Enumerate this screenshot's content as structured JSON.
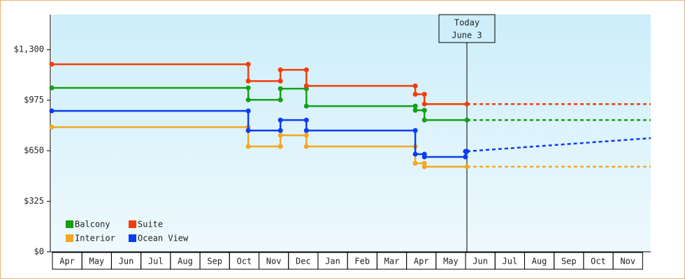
{
  "chart_data": {
    "type": "step-line",
    "ylim": [
      0,
      1525
    ],
    "yticks": [
      {
        "value": 0,
        "label": "$0"
      },
      {
        "value": 325,
        "label": "$325"
      },
      {
        "value": 650,
        "label": "$650"
      },
      {
        "value": 975,
        "label": "$975"
      },
      {
        "value": 1300,
        "label": "$1,300"
      }
    ],
    "xlim": [
      0,
      20.3
    ],
    "xticks": [
      {
        "value": 0.5,
        "label": "Apr"
      },
      {
        "value": 1.5,
        "label": "May"
      },
      {
        "value": 2.5,
        "label": "Jun"
      },
      {
        "value": 3.5,
        "label": "Jul"
      },
      {
        "value": 4.5,
        "label": "Aug"
      },
      {
        "value": 5.5,
        "label": "Sep"
      },
      {
        "value": 6.5,
        "label": "Oct"
      },
      {
        "value": 7.5,
        "label": "Nov"
      },
      {
        "value": 8.5,
        "label": "Dec"
      },
      {
        "value": 9.5,
        "label": "Jan"
      },
      {
        "value": 10.5,
        "label": "Feb"
      },
      {
        "value": 11.5,
        "label": "Mar"
      },
      {
        "value": 12.5,
        "label": "Apr"
      },
      {
        "value": 13.5,
        "label": "May"
      },
      {
        "value": 14.5,
        "label": "Jun"
      },
      {
        "value": 15.5,
        "label": "Jul"
      },
      {
        "value": 16.5,
        "label": "Aug"
      },
      {
        "value": 17.5,
        "label": "Sep"
      },
      {
        "value": 18.5,
        "label": "Oct"
      },
      {
        "value": 19.5,
        "label": "Nov"
      }
    ],
    "annotation": {
      "x": 14.07,
      "lines": [
        "Today",
        "June 3"
      ]
    },
    "series": [
      {
        "name": "Balcony",
        "color": "#13a013",
        "x": [
          0,
          6.66,
          7.75,
          8.63,
          12.32,
          12.63
        ],
        "values": [
          1054,
          977,
          1049,
          937,
          910,
          847
        ],
        "forecast": {
          "x": [
            14.07,
            20.3
          ],
          "values": [
            847,
            847
          ]
        }
      },
      {
        "name": "Suite",
        "color": "#f53c0a",
        "x": [
          0,
          6.66,
          7.75,
          8.63,
          12.32,
          12.63
        ],
        "values": [
          1206,
          1098,
          1170,
          1067,
          1013,
          950
        ],
        "forecast": {
          "x": [
            14.07,
            20.3
          ],
          "values": [
            950,
            950
          ]
        }
      },
      {
        "name": "Interior",
        "color": "#f5a623",
        "x": [
          0,
          6.66,
          7.75,
          8.63,
          12.32,
          12.63
        ],
        "values": [
          802,
          677,
          749,
          677,
          569,
          547
        ],
        "forecast": {
          "x": [
            14.07,
            20.3
          ],
          "values": [
            547,
            547
          ]
        }
      },
      {
        "name": "Ocean View",
        "color": "#0a3cf5",
        "x": [
          0,
          6.66,
          7.75,
          8.63,
          12.32,
          12.63,
          14.02
        ],
        "values": [
          906,
          780,
          847,
          780,
          628,
          610,
          646
        ],
        "forecast": {
          "x": [
            14.07,
            20.3
          ],
          "values": [
            646,
            731
          ]
        }
      }
    ]
  }
}
